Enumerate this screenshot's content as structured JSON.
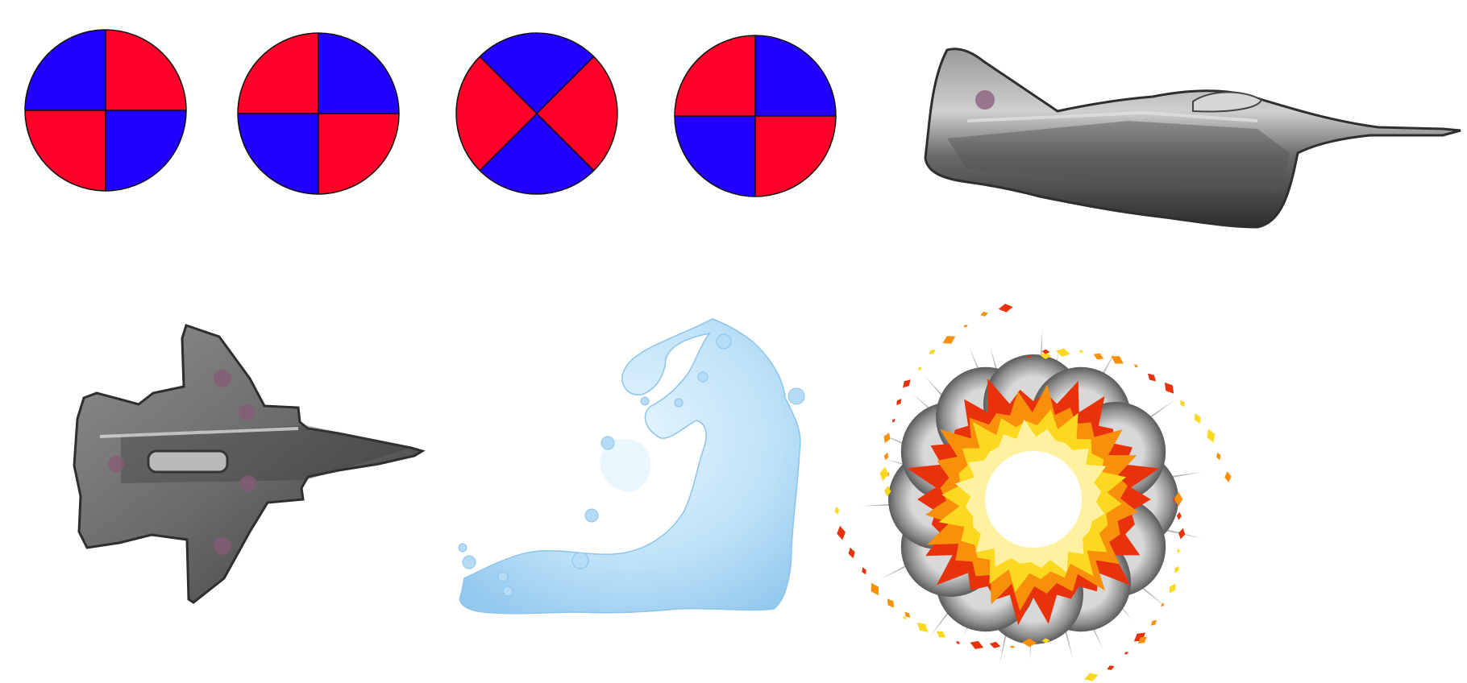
{
  "palette": {
    "background": "#ffffff",
    "quadrant_red": "#ff0028",
    "quadrant_blue": "#2200ff",
    "jet_metal": "#6e6e6e",
    "jet_dark": "#2e2e2e",
    "jet_highlight": "#b8b8b8",
    "jet_roundel": "#8a5a7a",
    "water_light": "#d8efff",
    "water_mid": "#b4dcf6",
    "water_dark": "#8cc4ec",
    "explosion_smoke": "#8c8c8c",
    "explosion_red": "#e8320c",
    "explosion_orange": "#f8900c",
    "explosion_yellow": "#fcd820"
  },
  "sprites": [
    {
      "name": "target-sprite-1",
      "kind": "quadrant-disc",
      "top_left": "blue",
      "top_right": "red",
      "bottom_left": "red",
      "bottom_right": "blue"
    },
    {
      "name": "target-sprite-2",
      "kind": "quadrant-disc",
      "top_left": "red",
      "top_right": "blue",
      "bottom_left": "blue",
      "bottom_right": "red"
    },
    {
      "name": "target-sprite-3",
      "kind": "diagonal-disc",
      "top": "blue",
      "right": "red",
      "bottom": "blue",
      "left": "red"
    },
    {
      "name": "target-sprite-4",
      "kind": "quadrant-disc",
      "top_left": "red",
      "top_right": "blue",
      "bottom_left": "blue",
      "bottom_right": "red"
    },
    {
      "name": "jet-side-view-sprite",
      "kind": "jet-side"
    },
    {
      "name": "jet-top-view-sprite",
      "kind": "jet-top"
    },
    {
      "name": "water-splash-sprite",
      "kind": "water-splash"
    },
    {
      "name": "explosion-sprite",
      "kind": "explosion"
    }
  ]
}
